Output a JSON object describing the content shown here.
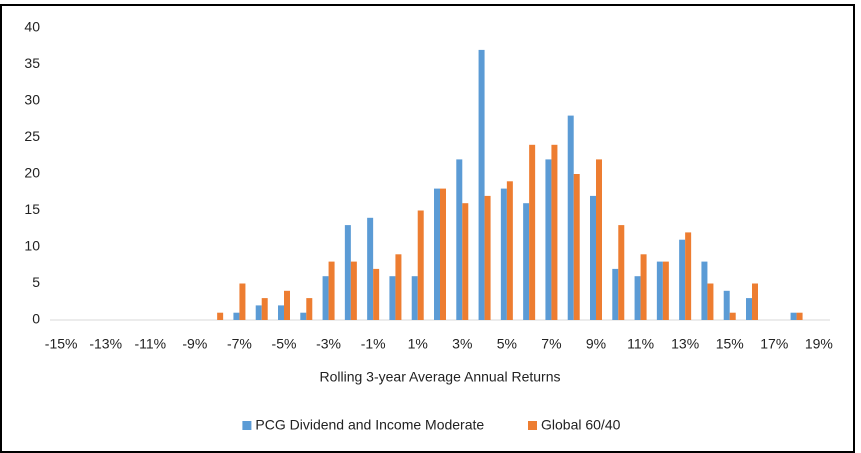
{
  "chart_data": {
    "type": "bar",
    "xlabel": "Rolling 3-year Average Annual Returns",
    "categories": [
      "-15%",
      null,
      "-13%",
      null,
      "-11%",
      null,
      "-9%",
      null,
      "-7%",
      null,
      "-5%",
      null,
      "-3%",
      null,
      "-1%",
      null,
      "1%",
      null,
      "3%",
      null,
      "5%",
      null,
      "7%",
      null,
      "9%",
      null,
      "11%",
      null,
      "13%",
      null,
      "15%",
      null,
      "17%",
      null,
      "19%"
    ],
    "series": [
      {
        "name": "PCG Dividend and Income Moderate",
        "color": "#5b9bd5",
        "values": [
          0,
          0,
          0,
          0,
          0,
          0,
          0,
          0,
          1,
          2,
          2,
          1,
          6,
          13,
          14,
          6,
          6,
          18,
          22,
          37,
          18,
          16,
          22,
          28,
          17,
          7,
          6,
          8,
          11,
          8,
          4,
          3,
          0,
          1,
          0
        ]
      },
      {
        "name": "Global 60/40",
        "color": "#ed7d31",
        "values": [
          0,
          0,
          0,
          0,
          0,
          0,
          0,
          1,
          5,
          3,
          4,
          3,
          8,
          8,
          7,
          9,
          15,
          18,
          16,
          17,
          19,
          24,
          24,
          20,
          22,
          13,
          9,
          8,
          12,
          5,
          1,
          5,
          0,
          1,
          0
        ]
      }
    ],
    "ylim": [
      0,
      40
    ],
    "yticks": [
      0,
      5,
      10,
      15,
      20,
      25,
      30,
      35,
      40
    ],
    "grid": false,
    "legend": "bottom"
  }
}
